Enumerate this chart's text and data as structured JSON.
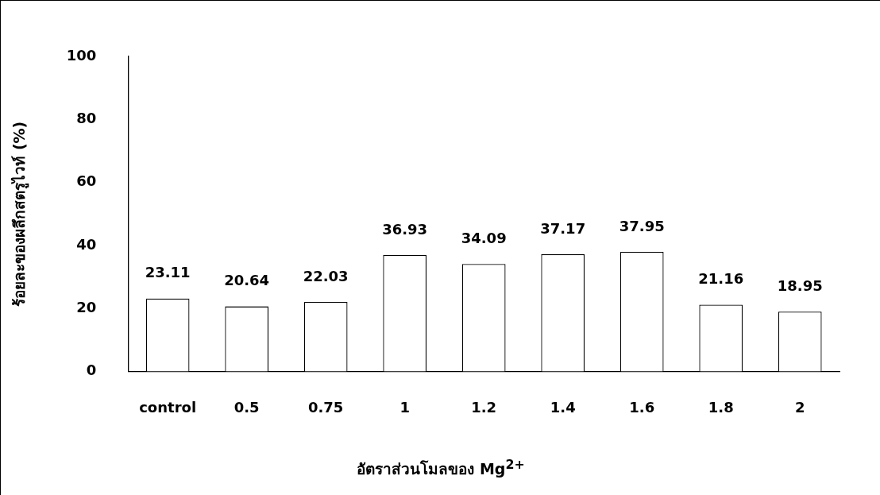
{
  "chart_data": {
    "type": "bar",
    "xlabel": "อัตราส่วนโมลของ Mg$^{2+}$",
    "ylabel": "ร้อยละของผลึกสตรูไวท์ (%)",
    "categories": [
      "control",
      "0.5",
      "0.75",
      "1",
      "1.2",
      "1.4",
      "1.6",
      "1.8",
      "2"
    ],
    "values": [
      23.11,
      20.64,
      22.03,
      36.93,
      34.09,
      37.17,
      37.95,
      21.16,
      18.95
    ],
    "color": "#ffffff",
    "ylim": [
      0,
      100
    ],
    "yticks": [
      0,
      20,
      40,
      60,
      80,
      100
    ],
    "grid": false,
    "legend": false,
    "data_labels": true
  }
}
